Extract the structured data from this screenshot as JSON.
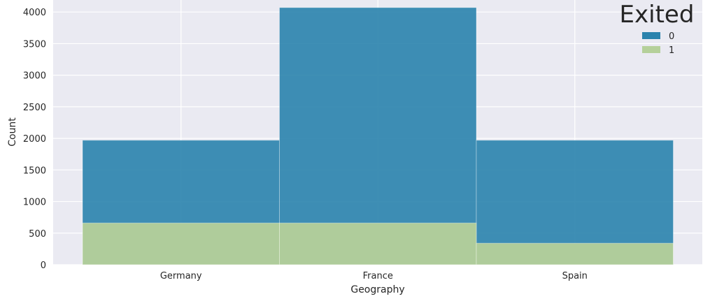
{
  "chart_data": {
    "type": "bar",
    "stacked": false,
    "overlapping": true,
    "categories": [
      "Germany",
      "France",
      "Spain"
    ],
    "series": [
      {
        "name": "0",
        "values": [
          1970,
          4070,
          1970
        ],
        "color": "#2a83ad"
      },
      {
        "name": "1",
        "values": [
          660,
          660,
          340
        ],
        "color": "#b5d09a"
      }
    ],
    "xlabel": "Geography",
    "ylabel": "Count",
    "ylim": [
      0,
      4070
    ],
    "yticks": [
      0,
      500,
      1000,
      1500,
      2000,
      2500,
      3000,
      3500,
      4000
    ],
    "grid": true,
    "background": "#eaeaf2",
    "legend": {
      "title": "Exited",
      "placement": "top-right"
    }
  }
}
